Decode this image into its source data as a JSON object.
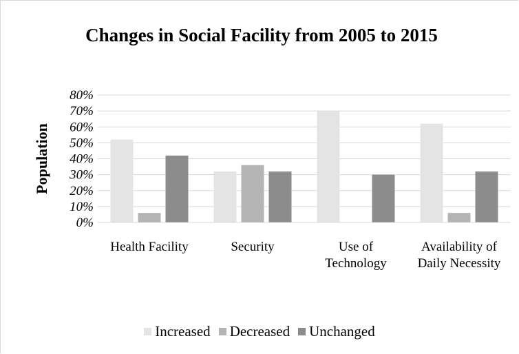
{
  "chart_data": {
    "type": "bar",
    "title": "Changes in Social Facility from 2005 to 2015",
    "ylabel": "Population",
    "xlabel": "",
    "ylim": [
      0,
      80
    ],
    "yticks": [
      "0%",
      "10%",
      "20%",
      "30%",
      "40%",
      "50%",
      "60%",
      "70%",
      "80%"
    ],
    "categories": [
      "Health Facility",
      "Security",
      "Use of Technology",
      "Availability of Daily Necessity"
    ],
    "series": [
      {
        "name": "Increased",
        "color": "#e4e4e4",
        "values": [
          52,
          32,
          70,
          62
        ]
      },
      {
        "name": "Decreased",
        "color": "#b4b4b4",
        "values": [
          6,
          36,
          0,
          6
        ]
      },
      {
        "name": "Unchanged",
        "color": "#8c8c8c",
        "values": [
          42,
          32,
          30,
          32
        ]
      }
    ],
    "legend_position": "bottom",
    "grid": true
  }
}
